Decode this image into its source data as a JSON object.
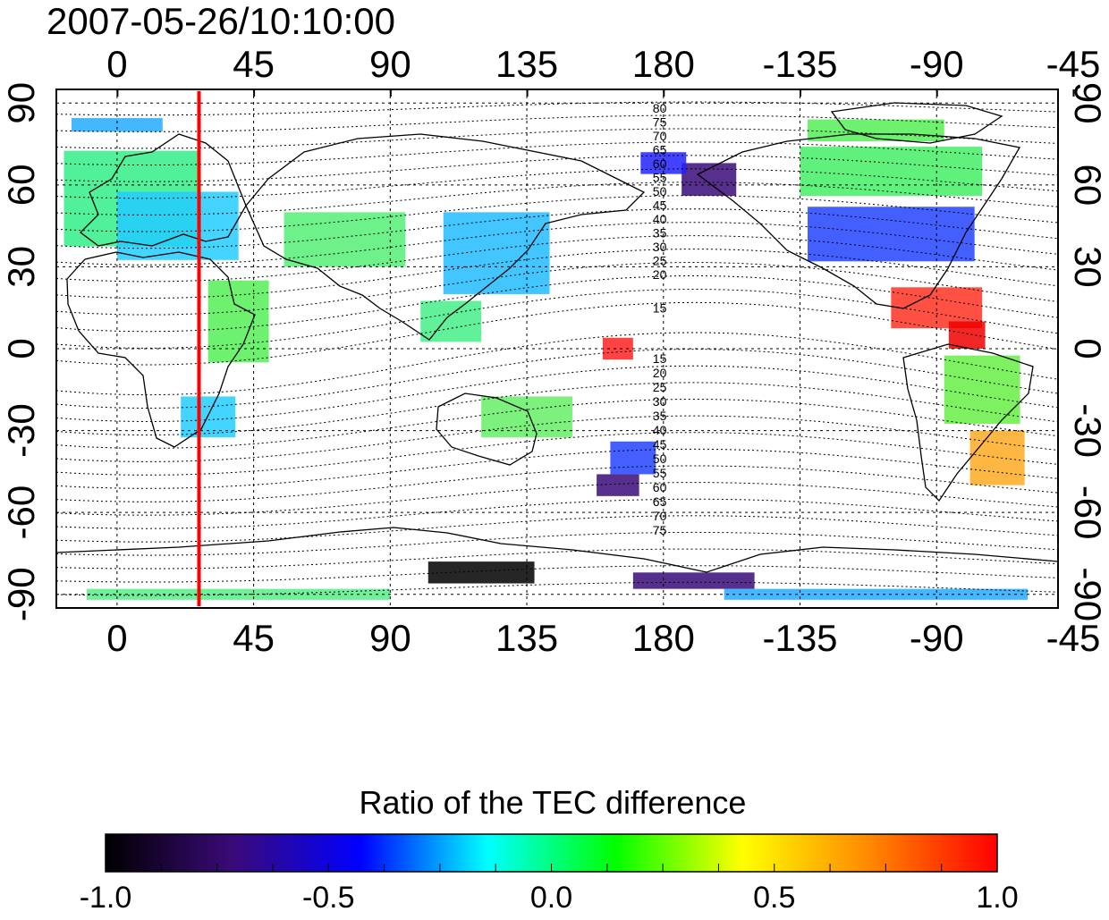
{
  "title": "2007-05-26/10:10:00",
  "axes": {
    "lon_ticks": [
      "0",
      "45",
      "90",
      "135",
      "180",
      "-135",
      "-90",
      "-45"
    ],
    "lat_ticks": [
      "90",
      "60",
      "30",
      "0",
      "-30",
      "-60",
      "-90"
    ]
  },
  "contour_labels_north": [
    "80",
    "75",
    "70",
    "65",
    "60",
    "55",
    "50",
    "45",
    "40",
    "35",
    "30",
    "25",
    "20",
    "15"
  ],
  "contour_labels_south": [
    "15",
    "20",
    "25",
    "30",
    "35",
    "40",
    "45",
    "50",
    "55",
    "60",
    "65",
    "70",
    "75"
  ],
  "colorbar": {
    "title": "Ratio of the TEC difference",
    "ticks": [
      "-1.0",
      "-0.5",
      "0.0",
      "0.5",
      "1.0"
    ],
    "stops": [
      "#000000",
      "#3a0a78",
      "#0000ff",
      "#00ffff",
      "#00ff00",
      "#ffff00",
      "#ff8800",
      "#ff0000"
    ]
  },
  "marker": {
    "lon": 27,
    "color": "#ff0000"
  },
  "colors": {
    "land_outline": "#000000",
    "grid": "#000000"
  },
  "map_data": {
    "projection": "equirectangular",
    "lon_range": [
      -20,
      310
    ],
    "lat_range": [
      -95,
      95
    ],
    "blobs": [
      {
        "lon": 5,
        "lat": 55,
        "w": 45,
        "h": 35,
        "color": "#33ee88"
      },
      {
        "lon": 20,
        "lat": 45,
        "w": 40,
        "h": 25,
        "color": "#22ccff"
      },
      {
        "lon": 40,
        "lat": 10,
        "w": 20,
        "h": 30,
        "color": "#55ee55"
      },
      {
        "lon": 30,
        "lat": -25,
        "w": 18,
        "h": 15,
        "color": "#22ccff"
      },
      {
        "lon": 75,
        "lat": 40,
        "w": 40,
        "h": 20,
        "color": "#55ee77"
      },
      {
        "lon": 125,
        "lat": 35,
        "w": 35,
        "h": 30,
        "color": "#22bbff"
      },
      {
        "lon": 110,
        "lat": 10,
        "w": 20,
        "h": 15,
        "color": "#44ee88"
      },
      {
        "lon": 135,
        "lat": -25,
        "w": 30,
        "h": 15,
        "color": "#66ee66"
      },
      {
        "lon": 170,
        "lat": -40,
        "w": 15,
        "h": 12,
        "color": "#2244ff"
      },
      {
        "lon": 165,
        "lat": -50,
        "w": 14,
        "h": 8,
        "color": "#3a0a78"
      },
      {
        "lon": 195,
        "lat": 62,
        "w": 18,
        "h": 12,
        "color": "#3a0a78"
      },
      {
        "lon": 180,
        "lat": 68,
        "w": 15,
        "h": 8,
        "color": "#2222ff"
      },
      {
        "lon": 255,
        "lat": 42,
        "w": 55,
        "h": 20,
        "color": "#2244ff"
      },
      {
        "lon": 255,
        "lat": 65,
        "w": 60,
        "h": 18,
        "color": "#44ee66"
      },
      {
        "lon": 250,
        "lat": 80,
        "w": 45,
        "h": 8,
        "color": "#55ee55"
      },
      {
        "lon": 270,
        "lat": 15,
        "w": 30,
        "h": 15,
        "color": "#ff3322"
      },
      {
        "lon": 285,
        "lat": -15,
        "w": 25,
        "h": 25,
        "color": "#66ee44"
      },
      {
        "lon": 290,
        "lat": -40,
        "w": 18,
        "h": 20,
        "color": "#ffaa22"
      },
      {
        "lon": 120,
        "lat": -82,
        "w": 35,
        "h": 8,
        "color": "#000000"
      },
      {
        "lon": 190,
        "lat": -85,
        "w": 40,
        "h": 6,
        "color": "#3a0a78"
      },
      {
        "lon": 40,
        "lat": -90,
        "w": 100,
        "h": 4,
        "color": "#55ee88"
      },
      {
        "lon": 250,
        "lat": -90,
        "w": 100,
        "h": 4,
        "color": "#22aaff"
      },
      {
        "lon": 165,
        "lat": 0,
        "w": 10,
        "h": 8,
        "color": "#ff2222"
      },
      {
        "lon": 280,
        "lat": 5,
        "w": 12,
        "h": 10,
        "color": "#ee0000"
      },
      {
        "lon": 0,
        "lat": 82,
        "w": 30,
        "h": 5,
        "color": "#22aaff"
      }
    ]
  }
}
